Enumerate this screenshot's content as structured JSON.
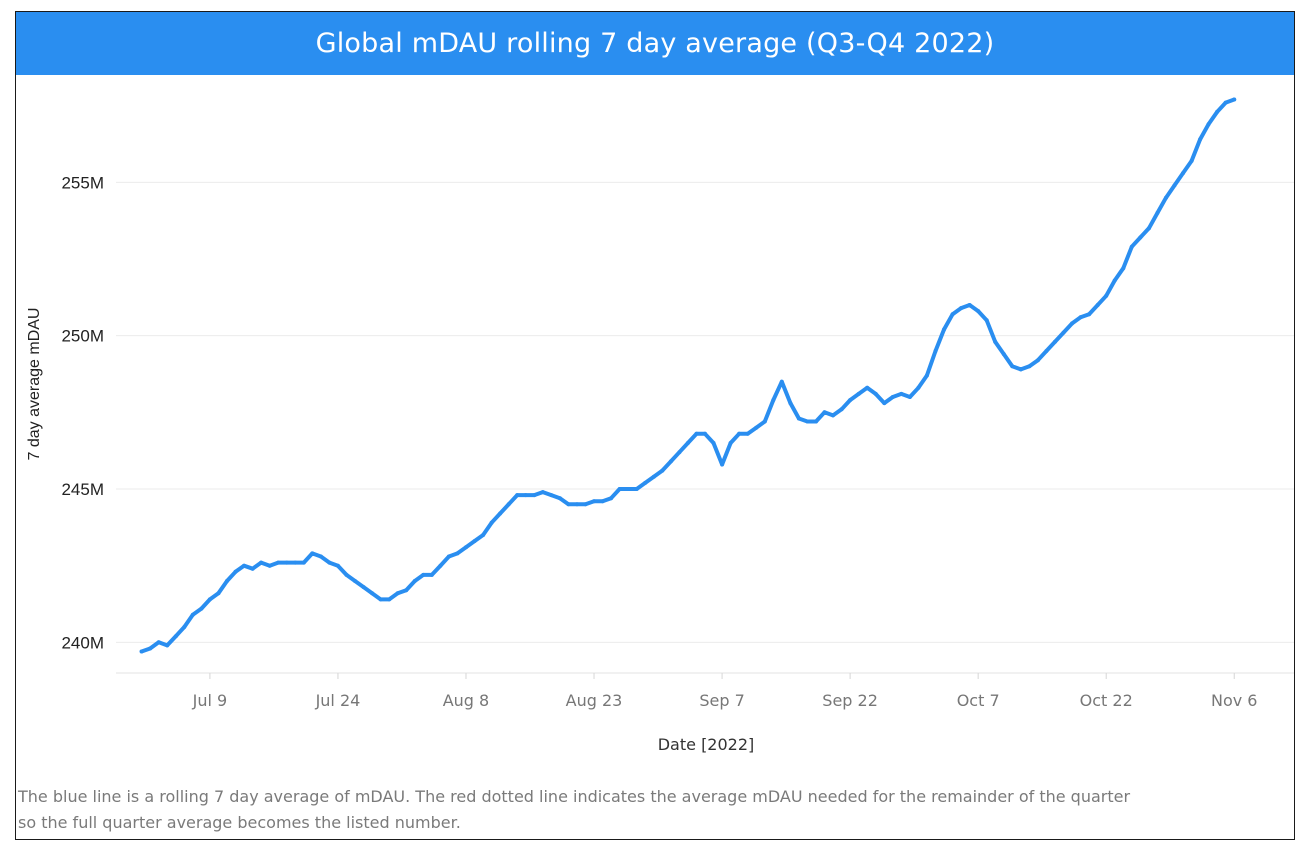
{
  "header": {
    "title": "Global mDAU rolling 7 day average (Q3-Q4 2022)"
  },
  "footnote": {
    "line1": "The blue line is a rolling 7 day average of mDAU. The red dotted line indicates the average mDAU needed for the remainder of the quarter",
    "line2": "so the full quarter average becomes the listed number."
  },
  "colors": {
    "title_bg": "#2a8ef0",
    "line": "#2a8ef0",
    "grid": "#ebebeb",
    "axis_text": "#777777"
  },
  "chart_data": {
    "type": "line",
    "title": "Global mDAU rolling 7 day average (Q3-Q4 2022)",
    "xlabel": "Date [2022]",
    "ylabel": "7 day average mDAU",
    "y_unit": "M",
    "ylim": [
      239,
      258.5
    ],
    "yticks": [
      240,
      245,
      250,
      255
    ],
    "ytick_labels": [
      "240M",
      "245M",
      "250M",
      "255M"
    ],
    "xlim": [
      "2022-06-28",
      "2022-11-13"
    ],
    "xticks": [
      "2022-07-09",
      "2022-07-24",
      "2022-08-08",
      "2022-08-23",
      "2022-09-07",
      "2022-09-22",
      "2022-10-07",
      "2022-10-22",
      "2022-11-06"
    ],
    "xtick_labels": [
      "Jul 9",
      "Jul 24",
      "Aug 8",
      "Aug 23",
      "Sep 7",
      "Sep 22",
      "Oct 7",
      "Oct 22",
      "Nov 6"
    ],
    "grid": true,
    "series": [
      {
        "x": [
          "2022-07-01",
          "2022-07-02",
          "2022-07-03",
          "2022-07-04",
          "2022-07-05",
          "2022-07-06",
          "2022-07-07",
          "2022-07-08",
          "2022-07-09",
          "2022-07-10",
          "2022-07-11",
          "2022-07-12",
          "2022-07-13",
          "2022-07-14",
          "2022-07-15",
          "2022-07-16",
          "2022-07-17",
          "2022-07-18",
          "2022-07-19",
          "2022-07-20",
          "2022-07-21",
          "2022-07-22",
          "2022-07-23",
          "2022-07-24",
          "2022-07-25",
          "2022-07-26",
          "2022-07-27",
          "2022-07-28",
          "2022-07-29",
          "2022-07-30",
          "2022-07-31",
          "2022-08-01",
          "2022-08-02",
          "2022-08-03",
          "2022-08-04",
          "2022-08-05",
          "2022-08-06",
          "2022-08-07",
          "2022-08-08",
          "2022-08-09",
          "2022-08-10",
          "2022-08-11",
          "2022-08-12",
          "2022-08-13",
          "2022-08-14",
          "2022-08-15",
          "2022-08-16",
          "2022-08-17",
          "2022-08-18",
          "2022-08-19",
          "2022-08-20",
          "2022-08-21",
          "2022-08-22",
          "2022-08-23",
          "2022-08-24",
          "2022-08-25",
          "2022-08-26",
          "2022-08-27",
          "2022-08-28",
          "2022-08-29",
          "2022-08-30",
          "2022-08-31",
          "2022-09-01",
          "2022-09-02",
          "2022-09-03",
          "2022-09-04",
          "2022-09-05",
          "2022-09-06",
          "2022-09-07",
          "2022-09-08",
          "2022-09-09",
          "2022-09-10",
          "2022-09-11",
          "2022-09-12",
          "2022-09-13",
          "2022-09-14",
          "2022-09-15",
          "2022-09-16",
          "2022-09-17",
          "2022-09-18",
          "2022-09-19",
          "2022-09-20",
          "2022-09-21",
          "2022-09-22",
          "2022-09-23",
          "2022-09-24",
          "2022-09-25",
          "2022-09-26",
          "2022-09-27",
          "2022-09-28",
          "2022-09-29",
          "2022-09-30",
          "2022-10-01",
          "2022-10-02",
          "2022-10-03",
          "2022-10-04",
          "2022-10-05",
          "2022-10-06",
          "2022-10-07",
          "2022-10-08",
          "2022-10-09",
          "2022-10-10",
          "2022-10-11",
          "2022-10-12",
          "2022-10-13",
          "2022-10-14",
          "2022-10-15",
          "2022-10-16",
          "2022-10-17",
          "2022-10-18",
          "2022-10-19",
          "2022-10-20",
          "2022-10-21",
          "2022-10-22",
          "2022-10-23",
          "2022-10-24",
          "2022-10-25",
          "2022-10-26",
          "2022-10-27",
          "2022-10-28",
          "2022-10-29",
          "2022-10-30",
          "2022-10-31",
          "2022-11-01",
          "2022-11-02",
          "2022-11-03",
          "2022-11-04",
          "2022-11-05",
          "2022-11-06"
        ],
        "values": [
          239.7,
          239.8,
          240.0,
          239.9,
          240.2,
          240.5,
          240.9,
          241.1,
          241.4,
          241.6,
          242.0,
          242.3,
          242.5,
          242.4,
          242.6,
          242.5,
          242.6,
          242.6,
          242.6,
          242.6,
          242.9,
          242.8,
          242.6,
          242.5,
          242.2,
          242.0,
          241.8,
          241.6,
          241.4,
          241.4,
          241.6,
          241.7,
          242.0,
          242.2,
          242.2,
          242.5,
          242.8,
          242.9,
          243.1,
          243.3,
          243.5,
          243.9,
          244.2,
          244.5,
          244.8,
          244.8,
          244.8,
          244.9,
          244.8,
          244.7,
          244.5,
          244.5,
          244.5,
          244.6,
          244.6,
          244.7,
          245.0,
          245.0,
          245.0,
          245.2,
          245.4,
          245.6,
          245.9,
          246.2,
          246.5,
          246.8,
          246.8,
          246.5,
          245.8,
          246.5,
          246.8,
          246.8,
          247.0,
          247.2,
          247.9,
          248.5,
          247.8,
          247.3,
          247.2,
          247.2,
          247.5,
          247.4,
          247.6,
          247.9,
          248.1,
          248.3,
          248.1,
          247.8,
          248.0,
          248.1,
          248.0,
          248.3,
          248.7,
          249.5,
          250.2,
          250.7,
          250.9,
          251.0,
          250.8,
          250.5,
          249.8,
          249.4,
          249.0,
          248.9,
          249.0,
          249.2,
          249.5,
          249.8,
          250.1,
          250.4,
          250.6,
          250.7,
          251.0,
          251.3,
          251.8,
          252.2,
          252.9,
          253.2,
          253.5,
          254.0,
          254.5,
          254.9,
          255.3,
          255.7,
          256.4,
          256.9,
          257.3,
          257.6,
          257.7
        ]
      }
    ]
  }
}
